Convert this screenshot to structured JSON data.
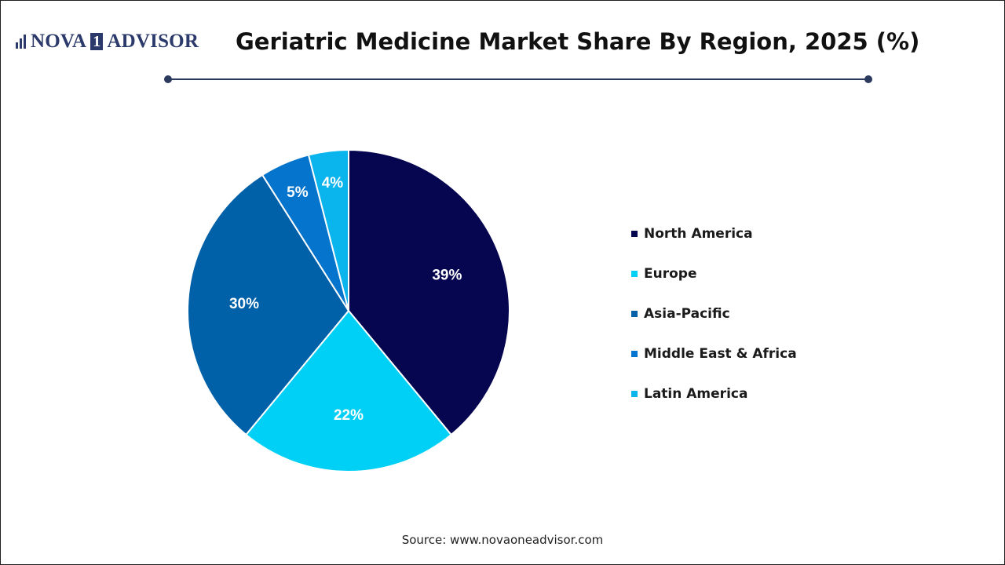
{
  "brand": {
    "name_part1": "NOVA",
    "name_mark": "1",
    "name_part2": "ADVISOR"
  },
  "colors": {
    "North America": "#05064f",
    "Europe": "#00d0f5",
    "Asia-Pacific": "#0060a8",
    "Middle East & Africa": "#0574cc",
    "Latin America": "#0ab4ec",
    "rule": "#2b3a5e"
  },
  "chart_data": {
    "type": "pie",
    "title": "Geriatric Medicine Market Share By Region, 2025 (%)",
    "unit": "%",
    "slices": [
      {
        "label": "North America",
        "value": 39,
        "display": "39%"
      },
      {
        "label": "Europe",
        "value": 22,
        "display": "22%"
      },
      {
        "label": "Asia-Pacific",
        "value": 30,
        "display": "30%"
      },
      {
        "label": "Middle East & Africa",
        "value": 5,
        "display": "5%"
      },
      {
        "label": "Latin America",
        "value": 4,
        "display": "4%"
      }
    ],
    "legend_position": "right"
  },
  "source": "Source: www.novaoneadvisor.com"
}
